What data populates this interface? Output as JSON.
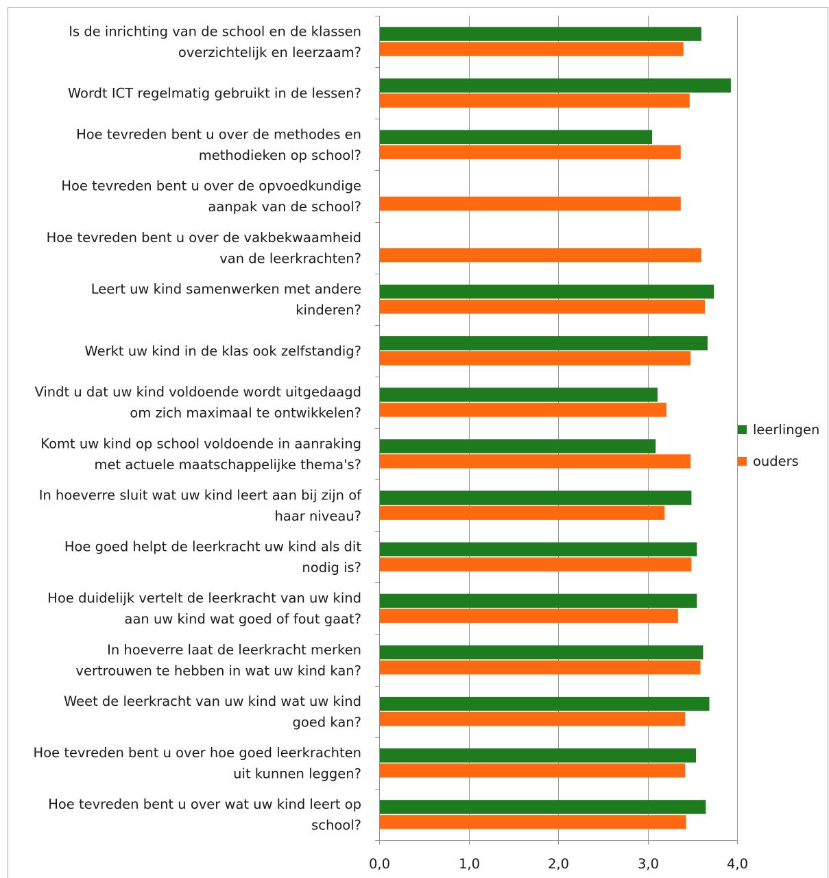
{
  "chart_data": {
    "type": "bar",
    "orientation": "horizontal",
    "categories": [
      [
        "Is de inrichting van de school en de klassen",
        "overzichtelijk en leerzaam?"
      ],
      [
        "Wordt ICT regelmatig gebruikt in de lessen?"
      ],
      [
        "Hoe tevreden bent u over de methodes en",
        "methodieken op school?"
      ],
      [
        "Hoe tevreden bent u over de opvoedkundige",
        "aanpak van de school?"
      ],
      [
        "Hoe tevreden bent u over de vakbekwaamheid",
        "van de leerkrachten?"
      ],
      [
        "Leert uw kind  samenwerken met andere",
        "kinderen?"
      ],
      [
        "Werkt uw kind  in de klas ook zelfstandig?"
      ],
      [
        "Vindt u dat uw kind voldoende wordt uitgedaagd",
        "om zich maximaal te ontwikkelen?"
      ],
      [
        "Komt uw kind op school voldoende in aanraking",
        "met actuele maatschappelijke thema's?"
      ],
      [
        "In hoeverre sluit wat uw kind leert aan bij zijn of",
        "haar niveau?"
      ],
      [
        "Hoe goed helpt de leerkracht uw kind als dit",
        "nodig is?"
      ],
      [
        "Hoe duidelijk vertelt de leerkracht van uw kind",
        "aan uw kind wat goed of fout gaat?"
      ],
      [
        "In hoeverre laat de leerkracht  merken",
        "vertrouwen te hebben in wat uw kind kan?"
      ],
      [
        "Weet de leerkracht van uw kind wat uw kind",
        "goed kan?"
      ],
      [
        "Hoe tevreden bent u over hoe goed leerkrachten",
        "uit kunnen leggen?"
      ],
      [
        "Hoe tevreden bent u over wat uw kind leert op",
        "school?"
      ]
    ],
    "series": [
      {
        "name": "leerlingen",
        "color": "#1e7b1e",
        "values": [
          3.6,
          3.93,
          3.05,
          null,
          null,
          3.74,
          3.67,
          3.11,
          3.09,
          3.49,
          3.55,
          3.55,
          3.62,
          3.69,
          3.54,
          3.65
        ]
      },
      {
        "name": "ouders",
        "color": "#ff6a10",
        "values": [
          3.4,
          3.47,
          3.37,
          3.37,
          3.6,
          3.64,
          3.48,
          3.21,
          3.48,
          3.19,
          3.49,
          3.34,
          3.59,
          3.42,
          3.42,
          3.43
        ]
      }
    ],
    "xlim": [
      0,
      4
    ],
    "xticks": [
      "0,0",
      "1,0",
      "2,0",
      "3,0",
      "4,0"
    ],
    "grid": true,
    "legend_position": "right",
    "title": "",
    "xlabel": "",
    "ylabel": ""
  }
}
